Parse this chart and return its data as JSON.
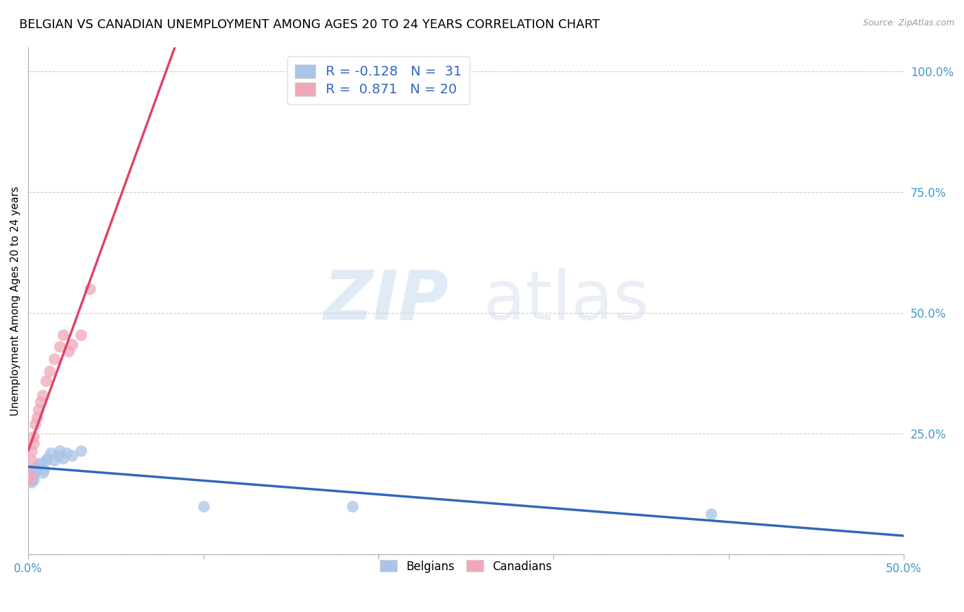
{
  "title": "BELGIAN VS CANADIAN UNEMPLOYMENT AMONG AGES 20 TO 24 YEARS CORRELATION CHART",
  "source": "Source: ZipAtlas.com",
  "ylabel_label": "Unemployment Among Ages 20 to 24 years",
  "xlim": [
    0.0,
    0.5
  ],
  "ylim": [
    0.0,
    1.05
  ],
  "xticks": [
    0.0,
    0.1,
    0.2,
    0.3,
    0.4,
    0.5
  ],
  "xtick_labels": [
    "0.0%",
    "",
    "",
    "",
    "",
    "50.0%"
  ],
  "yticks": [
    0.0,
    0.25,
    0.5,
    0.75,
    1.0
  ],
  "ytick_labels": [
    "",
    "25.0%",
    "50.0%",
    "75.0%",
    "100.0%"
  ],
  "belgian_color": "#aac4e8",
  "canadian_color": "#f0a8b8",
  "belgian_line_color": "#3366bb",
  "canadian_line_color": "#dd4466",
  "belgian_R": -0.128,
  "belgian_N": 31,
  "canadian_R": 0.871,
  "canadian_N": 20,
  "belgian_x": [
    0.001,
    0.001,
    0.001,
    0.002,
    0.002,
    0.002,
    0.002,
    0.003,
    0.003,
    0.003,
    0.004,
    0.004,
    0.005,
    0.005,
    0.006,
    0.007,
    0.008,
    0.009,
    0.01,
    0.011,
    0.013,
    0.015,
    0.017,
    0.018,
    0.02,
    0.022,
    0.025,
    0.03,
    0.1,
    0.185,
    0.39
  ],
  "belgian_y": [
    0.155,
    0.16,
    0.165,
    0.15,
    0.155,
    0.162,
    0.17,
    0.155,
    0.165,
    0.17,
    0.175,
    0.18,
    0.175,
    0.18,
    0.185,
    0.19,
    0.17,
    0.175,
    0.195,
    0.2,
    0.21,
    0.195,
    0.205,
    0.215,
    0.2,
    0.21,
    0.205,
    0.215,
    0.1,
    0.1,
    0.085
  ],
  "canadian_x": [
    0.001,
    0.001,
    0.002,
    0.002,
    0.003,
    0.003,
    0.004,
    0.005,
    0.006,
    0.007,
    0.008,
    0.01,
    0.012,
    0.015,
    0.018,
    0.02,
    0.023,
    0.025,
    0.03,
    0.035
  ],
  "canadian_y": [
    0.155,
    0.165,
    0.195,
    0.215,
    0.23,
    0.245,
    0.27,
    0.285,
    0.3,
    0.315,
    0.33,
    0.36,
    0.38,
    0.405,
    0.43,
    0.455,
    0.42,
    0.435,
    0.455,
    0.55
  ],
  "watermark_zip": "ZIP",
  "watermark_atlas": "atlas",
  "background_color": "#ffffff",
  "grid_color": "#cccccc",
  "tick_color": "#4499cc",
  "title_fontsize": 13,
  "axis_label_fontsize": 11,
  "tick_fontsize": 12,
  "legend_fontsize": 14,
  "legend_color": "#3366bb",
  "legend_label1_R": "R = -0.128",
  "legend_label1_N": "N =  31",
  "legend_label2_R": "R =  0.871",
  "legend_label2_N": "N = 20"
}
